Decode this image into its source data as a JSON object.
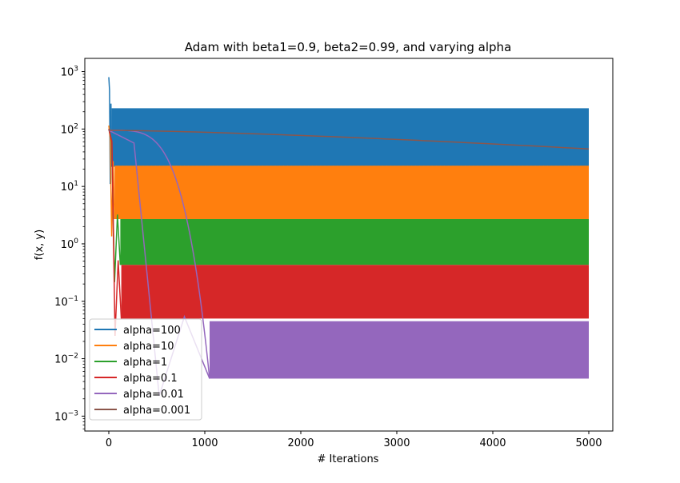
{
  "chart_data": {
    "type": "line",
    "title": "Adam with beta1=0.9, beta2=0.99, and varying alpha",
    "xlabel": "# Iterations",
    "ylabel": "f(x, y)",
    "xlim": [
      -250,
      5250
    ],
    "ylim": [
      0.00055,
      1700
    ],
    "yscale": "log",
    "xticks": [
      0,
      1000,
      2000,
      3000,
      4000,
      5000
    ],
    "yticks": [
      {
        "value": 0.001,
        "base": "10",
        "exp": "−3"
      },
      {
        "value": 0.01,
        "base": "10",
        "exp": "−2"
      },
      {
        "value": 0.1,
        "base": "10",
        "exp": "−1"
      },
      {
        "value": 1,
        "base": "10",
        "exp": "0"
      },
      {
        "value": 10,
        "base": "10",
        "exp": "1"
      },
      {
        "value": 100,
        "base": "10",
        "exp": "2"
      },
      {
        "value": 1000,
        "base": "10",
        "exp": "3"
      }
    ],
    "grid": false,
    "legend_position": "lower-left",
    "series": [
      {
        "name": "alpha=100",
        "color": "#1f77b4",
        "start": 800,
        "band_low": 22,
        "band_high": 230,
        "converge_at": 30
      },
      {
        "name": "alpha=10",
        "color": "#ff7f0e",
        "start": 115,
        "band_low": 2.7,
        "band_high": 23,
        "converge_at": 60
      },
      {
        "name": "alpha=1",
        "color": "#2ca02c",
        "start": 100,
        "band_low": 0.43,
        "band_high": 2.7,
        "converge_at": 120
      },
      {
        "name": "alpha=0.1",
        "color": "#d62728",
        "start": 100,
        "band_low": 0.05,
        "band_high": 0.43,
        "converge_at": 130
      },
      {
        "name": "alpha=0.01",
        "color": "#9467bd",
        "start": 95,
        "band_low": 0.0045,
        "band_high": 0.045,
        "converge_at": 1050
      },
      {
        "name": "alpha=0.001",
        "color": "#8c564b",
        "start": 95,
        "end": 45
      }
    ],
    "x_end": 5000
  }
}
